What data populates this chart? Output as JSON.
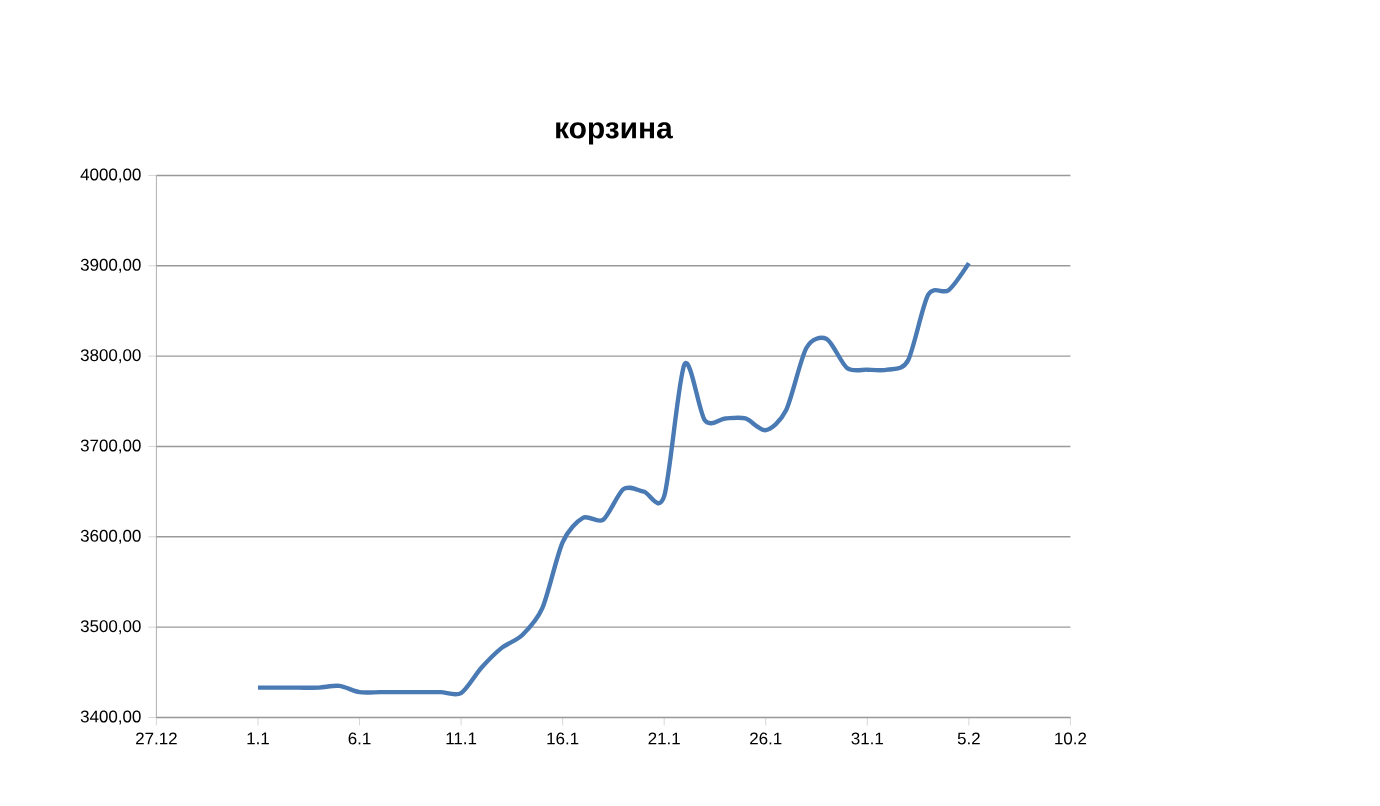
{
  "chart_data": {
    "type": "line",
    "title": "корзина",
    "categories": [
      "27.12",
      null,
      null,
      null,
      null,
      "1.1",
      null,
      null,
      null,
      null,
      "6.1",
      null,
      null,
      null,
      null,
      "11.1",
      null,
      null,
      null,
      null,
      "16.1",
      null,
      null,
      null,
      null,
      "21.1",
      null,
      null,
      null,
      null,
      "26.1",
      null,
      null,
      null,
      null,
      "31.1",
      null,
      null,
      null,
      null,
      "5.2",
      null,
      null,
      null,
      null,
      "10.2"
    ],
    "series": [
      {
        "color": "#4a7ab4",
        "values": [
          null,
          null,
          null,
          null,
          null,
          3433,
          3433,
          3433,
          3433,
          3435,
          3428,
          3428,
          3428,
          3428,
          3428,
          3427,
          3455,
          3477,
          3491,
          3521,
          3594,
          3621,
          3619,
          3653,
          3650,
          3645,
          3791,
          3729,
          3731,
          3731,
          3718,
          3740,
          3809,
          3819,
          3787,
          3785,
          3785,
          3795,
          3868,
          3873,
          3903,
          null,
          null,
          null,
          null,
          null
        ]
      }
    ],
    "ylim": [
      3400,
      4000
    ],
    "yticks": [
      {
        "value": 3400,
        "label": "3400,00"
      },
      {
        "value": 3500,
        "label": "3500,00"
      },
      {
        "value": 3600,
        "label": "3600,00"
      },
      {
        "value": 3700,
        "label": "3700,00"
      },
      {
        "value": 3800,
        "label": "3800,00"
      },
      {
        "value": 3900,
        "label": "3900,00"
      },
      {
        "value": 4000,
        "label": "4000,00"
      }
    ],
    "grid": "y",
    "marker": "none",
    "line_style": "solid"
  }
}
